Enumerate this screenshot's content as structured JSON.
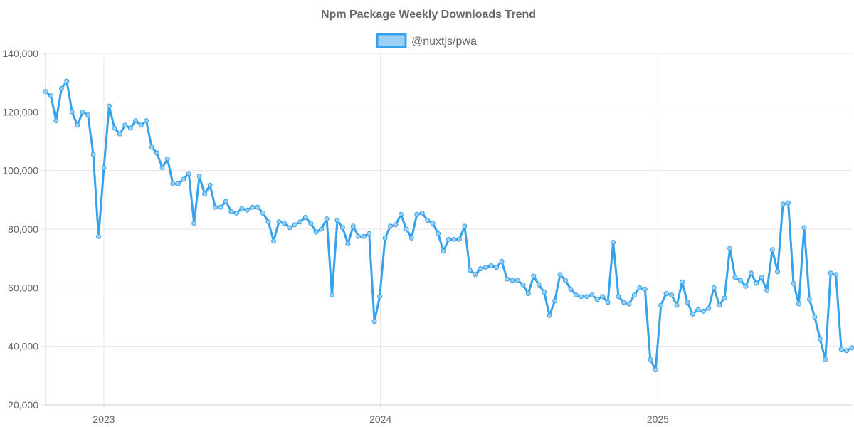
{
  "chart_data": {
    "type": "line",
    "title": "Npm Package Weekly Downloads Trend",
    "legend_position": "top-center",
    "grid": true,
    "series": [
      {
        "name": "@nuxtjs/pwa",
        "color": "#36a2eb",
        "fill_color": "#9ad0f5",
        "values": [
          127000,
          125500,
          117000,
          128000,
          130500,
          120000,
          115500,
          120000,
          119000,
          105500,
          77500,
          101000,
          122000,
          114500,
          112500,
          115500,
          114500,
          117000,
          115500,
          117000,
          108000,
          106000,
          101000,
          104000,
          95500,
          95500,
          97000,
          99000,
          82000,
          98000,
          92000,
          95000,
          87500,
          87500,
          89500,
          86000,
          85500,
          87000,
          86500,
          87500,
          87500,
          85500,
          82500,
          76000,
          82500,
          82000,
          80500,
          81500,
          82500,
          84000,
          82000,
          79000,
          80000,
          83500,
          57500,
          83000,
          80500,
          75000,
          81000,
          77500,
          77500,
          78500,
          48500,
          57000,
          77000,
          81000,
          81500,
          85000,
          80000,
          77000,
          85000,
          85500,
          83000,
          82000,
          78500,
          72500,
          76500,
          76500,
          76500,
          81000,
          66000,
          64500,
          66500,
          67000,
          67500,
          67000,
          69000,
          63000,
          62500,
          62500,
          61000,
          58000,
          64000,
          61000,
          58500,
          50500,
          55500,
          64500,
          62500,
          59500,
          57500,
          57000,
          57000,
          57500,
          56000,
          57000,
          55000,
          75500,
          57000,
          55000,
          54500,
          57500,
          60000,
          59500,
          35500,
          32000,
          54000,
          58000,
          57500,
          54000,
          62000,
          55000,
          51000,
          52500,
          52000,
          53000,
          60000,
          54000,
          56500,
          73500,
          63500,
          62500,
          60500,
          65000,
          61500,
          63500,
          59000,
          73000,
          65500,
          88500,
          89000,
          61500,
          54500,
          80500,
          56000,
          50000,
          42500,
          35500,
          65000,
          64500,
          39000,
          38500,
          39500,
          40000,
          42000,
          40500
        ]
      }
    ],
    "x_range": [
      "2022-10-16",
      "2025-09-14"
    ],
    "x_ticks": [
      {
        "date": "2023-01-01",
        "label": "2023"
      },
      {
        "date": "2024-01-01",
        "label": "2024"
      },
      {
        "date": "2025-01-01",
        "label": "2025"
      }
    ],
    "ylim": [
      20000,
      140000
    ],
    "y_ticks": [
      20000,
      40000,
      60000,
      80000,
      100000,
      120000,
      140000
    ],
    "y_tick_labels": [
      "20,000",
      "40,000",
      "60,000",
      "80,000",
      "100,000",
      "120,000",
      "140,000"
    ]
  }
}
